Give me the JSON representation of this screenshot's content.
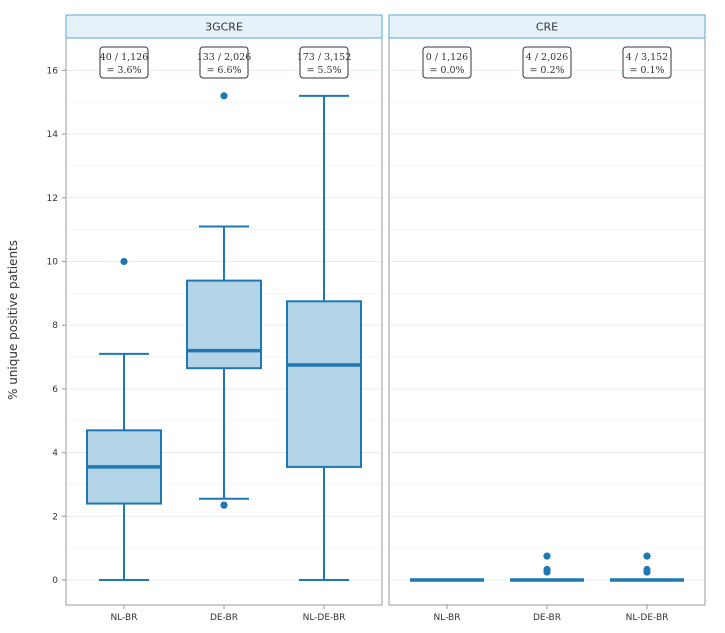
{
  "chart_data": {
    "type": "boxplot",
    "ylabel": "% unique positive patients",
    "ylim": [
      -0.8,
      17.2
    ],
    "yticks": [
      0,
      2,
      4,
      6,
      8,
      10,
      12,
      14,
      16
    ],
    "ytick_labels": [
      "0",
      "2",
      "4",
      "6",
      "8",
      "10",
      "12",
      "14",
      "16"
    ],
    "categories": [
      "NL-BR",
      "DE-BR",
      "NL-DE-BR"
    ],
    "panels": [
      {
        "title": "3GCRE",
        "boxes": [
          {
            "category": "NL-BR",
            "min": 0,
            "q1": 2.4,
            "median": 3.55,
            "q3": 4.7,
            "max": 7.1,
            "outliers": [
              10.0
            ]
          },
          {
            "category": "DE-BR",
            "min": 2.55,
            "q1": 6.65,
            "median": 7.2,
            "q3": 9.4,
            "max": 11.1,
            "outliers": [
              2.35,
              15.2
            ]
          },
          {
            "category": "NL-DE-BR",
            "min": 0,
            "q1": 3.55,
            "median": 6.75,
            "q3": 8.75,
            "max": 15.2,
            "outliers": []
          }
        ],
        "annotations": [
          {
            "category": "NL-BR",
            "line1": "40 / 1,126",
            "line2": "= 3.6%"
          },
          {
            "category": "DE-BR",
            "line1": "133 / 2,026",
            "line2": "= 6.6%"
          },
          {
            "category": "NL-DE-BR",
            "line1": "173 / 3,152",
            "line2": "= 5.5%"
          }
        ]
      },
      {
        "title": "CRE",
        "boxes": [
          {
            "category": "NL-BR",
            "min": 0,
            "q1": 0,
            "median": 0,
            "q3": 0,
            "max": 0,
            "outliers": []
          },
          {
            "category": "DE-BR",
            "min": 0,
            "q1": 0,
            "median": 0,
            "q3": 0,
            "max": 0,
            "outliers": [
              0.25,
              0.33,
              0.75
            ]
          },
          {
            "category": "NL-DE-BR",
            "min": 0,
            "q1": 0,
            "median": 0,
            "q3": 0,
            "max": 0,
            "outliers": [
              0.25,
              0.33,
              0.75
            ]
          }
        ],
        "annotations": [
          {
            "category": "NL-BR",
            "line1": "0 / 1,126",
            "line2": "= 0.0%"
          },
          {
            "category": "DE-BR",
            "line1": "4 / 2,026",
            "line2": "= 0.2%"
          },
          {
            "category": "NL-DE-BR",
            "line1": "4 / 3,152",
            "line2": "= 0.1%"
          }
        ]
      }
    ]
  }
}
